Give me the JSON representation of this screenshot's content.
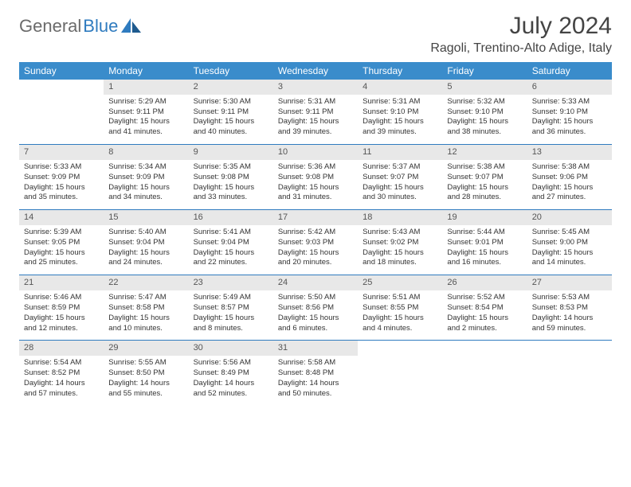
{
  "brand": {
    "name_part1": "General",
    "name_part2": "Blue",
    "text_color": "#6b6b6b",
    "accent_color": "#2f7bbf"
  },
  "title": "July 2024",
  "location": "Ragoli, Trentino-Alto Adige, Italy",
  "header_bg": "#3a8ccb",
  "header_text_color": "#ffffff",
  "border_color": "#2f7bbf",
  "daynum_bg": "#e8e8e8",
  "weekdays": [
    "Sunday",
    "Monday",
    "Tuesday",
    "Wednesday",
    "Thursday",
    "Friday",
    "Saturday"
  ],
  "weeks": [
    [
      {
        "day": "",
        "sunrise": "",
        "sunset": "",
        "daylight": ""
      },
      {
        "day": "1",
        "sunrise": "Sunrise: 5:29 AM",
        "sunset": "Sunset: 9:11 PM",
        "daylight": "Daylight: 15 hours and 41 minutes."
      },
      {
        "day": "2",
        "sunrise": "Sunrise: 5:30 AM",
        "sunset": "Sunset: 9:11 PM",
        "daylight": "Daylight: 15 hours and 40 minutes."
      },
      {
        "day": "3",
        "sunrise": "Sunrise: 5:31 AM",
        "sunset": "Sunset: 9:11 PM",
        "daylight": "Daylight: 15 hours and 39 minutes."
      },
      {
        "day": "4",
        "sunrise": "Sunrise: 5:31 AM",
        "sunset": "Sunset: 9:10 PM",
        "daylight": "Daylight: 15 hours and 39 minutes."
      },
      {
        "day": "5",
        "sunrise": "Sunrise: 5:32 AM",
        "sunset": "Sunset: 9:10 PM",
        "daylight": "Daylight: 15 hours and 38 minutes."
      },
      {
        "day": "6",
        "sunrise": "Sunrise: 5:33 AM",
        "sunset": "Sunset: 9:10 PM",
        "daylight": "Daylight: 15 hours and 36 minutes."
      }
    ],
    [
      {
        "day": "7",
        "sunrise": "Sunrise: 5:33 AM",
        "sunset": "Sunset: 9:09 PM",
        "daylight": "Daylight: 15 hours and 35 minutes."
      },
      {
        "day": "8",
        "sunrise": "Sunrise: 5:34 AM",
        "sunset": "Sunset: 9:09 PM",
        "daylight": "Daylight: 15 hours and 34 minutes."
      },
      {
        "day": "9",
        "sunrise": "Sunrise: 5:35 AM",
        "sunset": "Sunset: 9:08 PM",
        "daylight": "Daylight: 15 hours and 33 minutes."
      },
      {
        "day": "10",
        "sunrise": "Sunrise: 5:36 AM",
        "sunset": "Sunset: 9:08 PM",
        "daylight": "Daylight: 15 hours and 31 minutes."
      },
      {
        "day": "11",
        "sunrise": "Sunrise: 5:37 AM",
        "sunset": "Sunset: 9:07 PM",
        "daylight": "Daylight: 15 hours and 30 minutes."
      },
      {
        "day": "12",
        "sunrise": "Sunrise: 5:38 AM",
        "sunset": "Sunset: 9:07 PM",
        "daylight": "Daylight: 15 hours and 28 minutes."
      },
      {
        "day": "13",
        "sunrise": "Sunrise: 5:38 AM",
        "sunset": "Sunset: 9:06 PM",
        "daylight": "Daylight: 15 hours and 27 minutes."
      }
    ],
    [
      {
        "day": "14",
        "sunrise": "Sunrise: 5:39 AM",
        "sunset": "Sunset: 9:05 PM",
        "daylight": "Daylight: 15 hours and 25 minutes."
      },
      {
        "day": "15",
        "sunrise": "Sunrise: 5:40 AM",
        "sunset": "Sunset: 9:04 PM",
        "daylight": "Daylight: 15 hours and 24 minutes."
      },
      {
        "day": "16",
        "sunrise": "Sunrise: 5:41 AM",
        "sunset": "Sunset: 9:04 PM",
        "daylight": "Daylight: 15 hours and 22 minutes."
      },
      {
        "day": "17",
        "sunrise": "Sunrise: 5:42 AM",
        "sunset": "Sunset: 9:03 PM",
        "daylight": "Daylight: 15 hours and 20 minutes."
      },
      {
        "day": "18",
        "sunrise": "Sunrise: 5:43 AM",
        "sunset": "Sunset: 9:02 PM",
        "daylight": "Daylight: 15 hours and 18 minutes."
      },
      {
        "day": "19",
        "sunrise": "Sunrise: 5:44 AM",
        "sunset": "Sunset: 9:01 PM",
        "daylight": "Daylight: 15 hours and 16 minutes."
      },
      {
        "day": "20",
        "sunrise": "Sunrise: 5:45 AM",
        "sunset": "Sunset: 9:00 PM",
        "daylight": "Daylight: 15 hours and 14 minutes."
      }
    ],
    [
      {
        "day": "21",
        "sunrise": "Sunrise: 5:46 AM",
        "sunset": "Sunset: 8:59 PM",
        "daylight": "Daylight: 15 hours and 12 minutes."
      },
      {
        "day": "22",
        "sunrise": "Sunrise: 5:47 AM",
        "sunset": "Sunset: 8:58 PM",
        "daylight": "Daylight: 15 hours and 10 minutes."
      },
      {
        "day": "23",
        "sunrise": "Sunrise: 5:49 AM",
        "sunset": "Sunset: 8:57 PM",
        "daylight": "Daylight: 15 hours and 8 minutes."
      },
      {
        "day": "24",
        "sunrise": "Sunrise: 5:50 AM",
        "sunset": "Sunset: 8:56 PM",
        "daylight": "Daylight: 15 hours and 6 minutes."
      },
      {
        "day": "25",
        "sunrise": "Sunrise: 5:51 AM",
        "sunset": "Sunset: 8:55 PM",
        "daylight": "Daylight: 15 hours and 4 minutes."
      },
      {
        "day": "26",
        "sunrise": "Sunrise: 5:52 AM",
        "sunset": "Sunset: 8:54 PM",
        "daylight": "Daylight: 15 hours and 2 minutes."
      },
      {
        "day": "27",
        "sunrise": "Sunrise: 5:53 AM",
        "sunset": "Sunset: 8:53 PM",
        "daylight": "Daylight: 14 hours and 59 minutes."
      }
    ],
    [
      {
        "day": "28",
        "sunrise": "Sunrise: 5:54 AM",
        "sunset": "Sunset: 8:52 PM",
        "daylight": "Daylight: 14 hours and 57 minutes."
      },
      {
        "day": "29",
        "sunrise": "Sunrise: 5:55 AM",
        "sunset": "Sunset: 8:50 PM",
        "daylight": "Daylight: 14 hours and 55 minutes."
      },
      {
        "day": "30",
        "sunrise": "Sunrise: 5:56 AM",
        "sunset": "Sunset: 8:49 PM",
        "daylight": "Daylight: 14 hours and 52 minutes."
      },
      {
        "day": "31",
        "sunrise": "Sunrise: 5:58 AM",
        "sunset": "Sunset: 8:48 PM",
        "daylight": "Daylight: 14 hours and 50 minutes."
      },
      {
        "day": "",
        "sunrise": "",
        "sunset": "",
        "daylight": ""
      },
      {
        "day": "",
        "sunrise": "",
        "sunset": "",
        "daylight": ""
      },
      {
        "day": "",
        "sunrise": "",
        "sunset": "",
        "daylight": ""
      }
    ]
  ]
}
